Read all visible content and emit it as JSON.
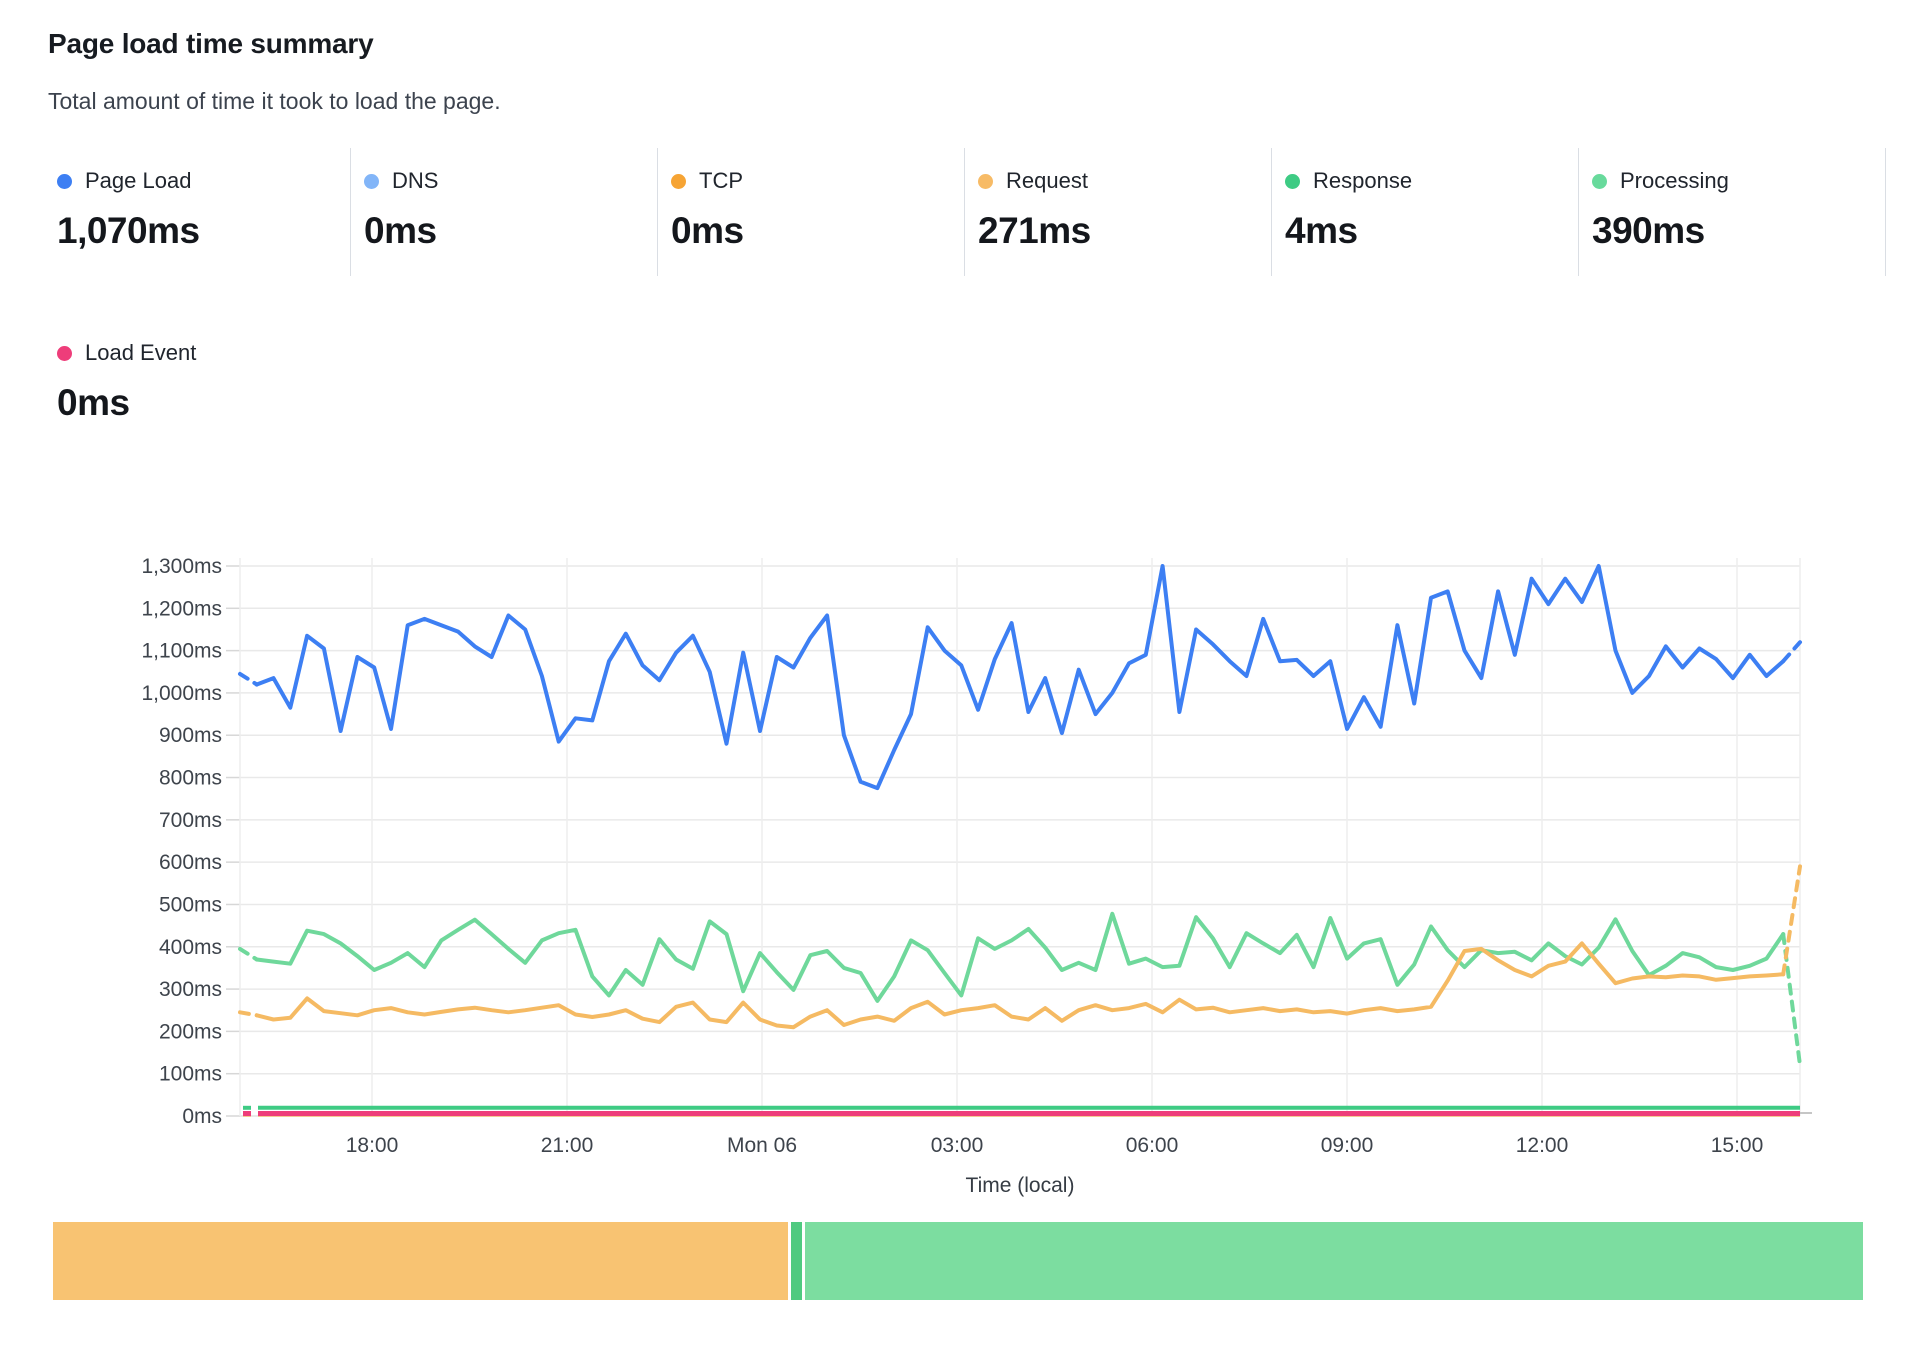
{
  "header": {
    "title": "Page load time summary",
    "subtitle": "Total amount of time it took to load the page."
  },
  "stats": [
    {
      "label": "Page Load",
      "value": "1,070ms",
      "color": "#3d7ff3"
    },
    {
      "label": "DNS",
      "value": "0ms",
      "color": "#82b5f8"
    },
    {
      "label": "TCP",
      "value": "0ms",
      "color": "#f6a434"
    },
    {
      "label": "Request",
      "value": "271ms",
      "color": "#f7bb66"
    },
    {
      "label": "Response",
      "value": "4ms",
      "color": "#3ecb84"
    },
    {
      "label": "Processing",
      "value": "390ms",
      "color": "#68da9c"
    },
    {
      "label": "Load Event",
      "value": "0ms",
      "color": "#ee3d7a"
    }
  ],
  "chart_data": [
    {
      "type": "line",
      "title": "Page load time summary",
      "unit": "ms",
      "xlabel": "Time (local)",
      "ylim": [
        0,
        1300
      ],
      "y_tick_step": 100,
      "x_tick_labels": [
        "18:00",
        "21:00",
        "Mon 06",
        "03:00",
        "06:00",
        "09:00",
        "12:00",
        "15:00"
      ],
      "x_tick_interval_hours": 3,
      "grid": true,
      "dashed_edge_segments": true,
      "legend_position": "top-stats",
      "series": [
        {
          "name": "Processing",
          "color": "#6fd89b",
          "values": [
            395,
            370,
            365,
            360,
            438,
            430,
            408,
            378,
            345,
            362,
            385,
            352,
            415,
            440,
            464,
            430,
            395,
            362,
            415,
            432,
            440,
            330,
            285,
            345,
            310,
            418,
            370,
            348,
            460,
            430,
            295,
            385,
            340,
            298,
            380,
            390,
            350,
            338,
            272,
            330,
            415,
            392,
            338,
            285,
            420,
            395,
            415,
            442,
            398,
            345,
            362,
            345,
            478,
            360,
            372,
            352,
            355,
            470,
            420,
            352,
            432,
            408,
            385,
            428,
            352,
            468,
            372,
            408,
            418,
            310,
            358,
            448,
            392,
            352,
            392,
            385,
            388,
            368,
            408,
            378,
            358,
            398,
            465,
            390,
            333,
            355,
            385,
            375,
            352,
            345,
            355,
            372,
            430,
            120
          ]
        },
        {
          "name": "Request",
          "color": "#f5ba63",
          "values": [
            245,
            238,
            228,
            232,
            278,
            248,
            243,
            238,
            250,
            255,
            245,
            240,
            246,
            252,
            256,
            250,
            245,
            250,
            256,
            262,
            240,
            234,
            240,
            250,
            230,
            222,
            258,
            268,
            228,
            222,
            268,
            228,
            214,
            210,
            235,
            250,
            215,
            228,
            235,
            225,
            255,
            270,
            240,
            250,
            255,
            262,
            235,
            228,
            255,
            225,
            250,
            262,
            250,
            255,
            265,
            245,
            275,
            252,
            256,
            245,
            250,
            255,
            248,
            252,
            245,
            248,
            242,
            250,
            255,
            248,
            252,
            258,
            320,
            390,
            395,
            368,
            345,
            330,
            355,
            365,
            408,
            360,
            314,
            325,
            330,
            328,
            332,
            330,
            322,
            326,
            330,
            332,
            335,
            590
          ]
        },
        {
          "name": "DNS",
          "color": "#82b5f8",
          "constant": 0
        },
        {
          "name": "TCP",
          "color": "#f6a434",
          "constant": 0
        },
        {
          "name": "Response",
          "color": "#3ecb84",
          "constant": 4
        },
        {
          "name": "Page Load",
          "color": "#3d7ff3",
          "values": [
            1045,
            1020,
            1035,
            965,
            1135,
            1105,
            910,
            1085,
            1060,
            915,
            1160,
            1175,
            1160,
            1145,
            1110,
            1085,
            1183,
            1150,
            1040,
            885,
            940,
            935,
            1075,
            1140,
            1065,
            1030,
            1095,
            1135,
            1050,
            880,
            1095,
            910,
            1085,
            1060,
            1130,
            1183,
            900,
            790,
            775,
            865,
            950,
            1155,
            1100,
            1065,
            960,
            1080,
            1165,
            955,
            1035,
            905,
            1055,
            950,
            1000,
            1070,
            1090,
            1300,
            955,
            1150,
            1115,
            1075,
            1040,
            1175,
            1075,
            1078,
            1040,
            1075,
            915,
            990,
            920,
            1160,
            975,
            1225,
            1240,
            1100,
            1035,
            1240,
            1090,
            1270,
            1210,
            1270,
            1215,
            1300,
            1100,
            1000,
            1040,
            1110,
            1060,
            1105,
            1080,
            1035,
            1090,
            1040,
            1075,
            1120
          ]
        },
        {
          "name": "Load Event",
          "color": "#ee3d7a",
          "constant": 0
        }
      ]
    },
    {
      "type": "bar",
      "orientation": "horizontal-stacked",
      "unit": "ms",
      "segments": [
        {
          "name": "Request",
          "value": 271,
          "color": "#f8c372"
        },
        {
          "name": "Response",
          "value": 4,
          "color": "#4fca80"
        },
        {
          "name": "Processing",
          "value": 390,
          "color": "#7cdda0"
        }
      ]
    }
  ]
}
